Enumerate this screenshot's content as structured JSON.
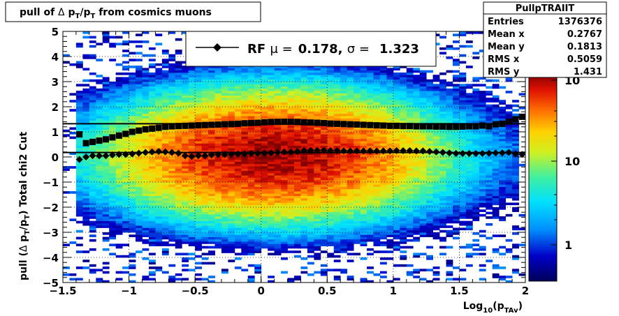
{
  "title": "pull of Δ p_T/p_T from cosmics muons",
  "stats": {
    "name": "PullpTRAIIT",
    "rows": [
      {
        "label": "Entries",
        "value": "1376376"
      },
      {
        "label": "Mean x",
        "value": "0.2767"
      },
      {
        "label": "Mean y",
        "value": "0.1813"
      },
      {
        "label": "RMS x",
        "value": "0.5059"
      },
      {
        "label": "RMS y",
        "value": "1.431"
      }
    ]
  },
  "legend": {
    "label": "RF",
    "mu_label": "μ =",
    "mu_value": "0.178,",
    "sigma_label": "σ =",
    "sigma_value": "1.323"
  },
  "colorbar": {
    "labels": [
      "1",
      "10",
      "10"
    ],
    "scale": "log"
  },
  "chart_data": {
    "type": "heatmap",
    "title": "pull of Δ p_T/p_T from cosmics muons",
    "xlabel": "Log10(p_TAv)",
    "ylabel": "pull (Δ p_T/p_T)  Total chi2 Cut",
    "xlim": [
      -1.5,
      2
    ],
    "ylim": [
      -5,
      5
    ],
    "xticks": [
      -1.5,
      -1,
      -0.5,
      0,
      0.5,
      1,
      1.5,
      2
    ],
    "yticks": [
      -5,
      -4,
      -3,
      -2,
      -1,
      0,
      1,
      2,
      3,
      4,
      5
    ],
    "grid": true,
    "density": {
      "x_center": 0.2767,
      "y_center": 0.1813,
      "x_rms": 0.5059,
      "y_rms": 1.431
    },
    "series": [
      {
        "name": "sigma",
        "marker": "square",
        "x": [
          -1.375,
          -1.325,
          -1.275,
          -1.225,
          -1.175,
          -1.125,
          -1.075,
          -1.025,
          -0.975,
          -0.925,
          -0.875,
          -0.825,
          -0.775,
          -0.725,
          -0.675,
          -0.625,
          -0.575,
          -0.525,
          -0.475,
          -0.425,
          -0.375,
          -0.325,
          -0.275,
          -0.225,
          -0.175,
          -0.125,
          -0.075,
          -0.025,
          0.025,
          0.075,
          0.125,
          0.175,
          0.225,
          0.275,
          0.325,
          0.375,
          0.425,
          0.475,
          0.525,
          0.575,
          0.625,
          0.675,
          0.725,
          0.775,
          0.825,
          0.875,
          0.925,
          0.975,
          1.025,
          1.075,
          1.125,
          1.175,
          1.225,
          1.275,
          1.325,
          1.375,
          1.425,
          1.475,
          1.525,
          1.575,
          1.625,
          1.675,
          1.725,
          1.775,
          1.825,
          1.875,
          1.925,
          1.975
        ],
        "y": [
          0.9,
          0.55,
          0.6,
          0.65,
          0.7,
          0.78,
          0.85,
          0.92,
          1.0,
          1.05,
          1.1,
          1.13,
          1.16,
          1.2,
          1.22,
          1.23,
          1.24,
          1.25,
          1.26,
          1.27,
          1.28,
          1.29,
          1.3,
          1.31,
          1.32,
          1.34,
          1.35,
          1.36,
          1.38,
          1.39,
          1.4,
          1.4,
          1.4,
          1.39,
          1.38,
          1.37,
          1.36,
          1.35,
          1.33,
          1.32,
          1.31,
          1.3,
          1.29,
          1.28,
          1.27,
          1.26,
          1.25,
          1.24,
          1.24,
          1.23,
          1.23,
          1.22,
          1.22,
          1.22,
          1.21,
          1.21,
          1.2,
          1.2,
          1.21,
          1.22,
          1.22,
          1.25,
          1.22,
          1.3,
          1.32,
          1.4,
          1.5,
          1.6
        ]
      },
      {
        "name": "mean",
        "marker": "diamond",
        "x": [
          -1.375,
          -1.325,
          -1.275,
          -1.225,
          -1.175,
          -1.125,
          -1.075,
          -1.025,
          -0.975,
          -0.925,
          -0.875,
          -0.825,
          -0.775,
          -0.725,
          -0.675,
          -0.625,
          -0.575,
          -0.525,
          -0.475,
          -0.425,
          -0.375,
          -0.325,
          -0.275,
          -0.225,
          -0.175,
          -0.125,
          -0.075,
          -0.025,
          0.025,
          0.075,
          0.125,
          0.175,
          0.225,
          0.275,
          0.325,
          0.375,
          0.425,
          0.475,
          0.525,
          0.575,
          0.625,
          0.675,
          0.725,
          0.775,
          0.825,
          0.875,
          0.925,
          0.975,
          1.025,
          1.075,
          1.125,
          1.175,
          1.225,
          1.275,
          1.325,
          1.375,
          1.425,
          1.475,
          1.525,
          1.575,
          1.625,
          1.675,
          1.725,
          1.775,
          1.825,
          1.875,
          1.925,
          1.975
        ],
        "y": [
          -0.1,
          0.0,
          0.05,
          0.05,
          0.05,
          0.08,
          0.1,
          0.1,
          0.12,
          0.15,
          0.18,
          0.2,
          0.22,
          0.2,
          0.18,
          0.15,
          0.05,
          0.02,
          0.05,
          0.05,
          0.08,
          0.1,
          0.1,
          0.1,
          0.12,
          0.12,
          0.14,
          0.14,
          0.15,
          0.16,
          0.18,
          0.2,
          0.2,
          0.22,
          0.25,
          0.26,
          0.26,
          0.26,
          0.25,
          0.25,
          0.24,
          0.24,
          0.24,
          0.24,
          0.24,
          0.24,
          0.24,
          0.24,
          0.25,
          0.25,
          0.25,
          0.24,
          0.24,
          0.22,
          0.2,
          0.18,
          0.16,
          0.14,
          0.14,
          0.14,
          0.14,
          0.14,
          0.15,
          0.16,
          0.16,
          0.18,
          0.12,
          0.1
        ]
      }
    ],
    "fit_lines": [
      {
        "name": "sigma fit",
        "value": 1.323
      },
      {
        "name": "mean fit",
        "value": 0.178
      }
    ]
  }
}
